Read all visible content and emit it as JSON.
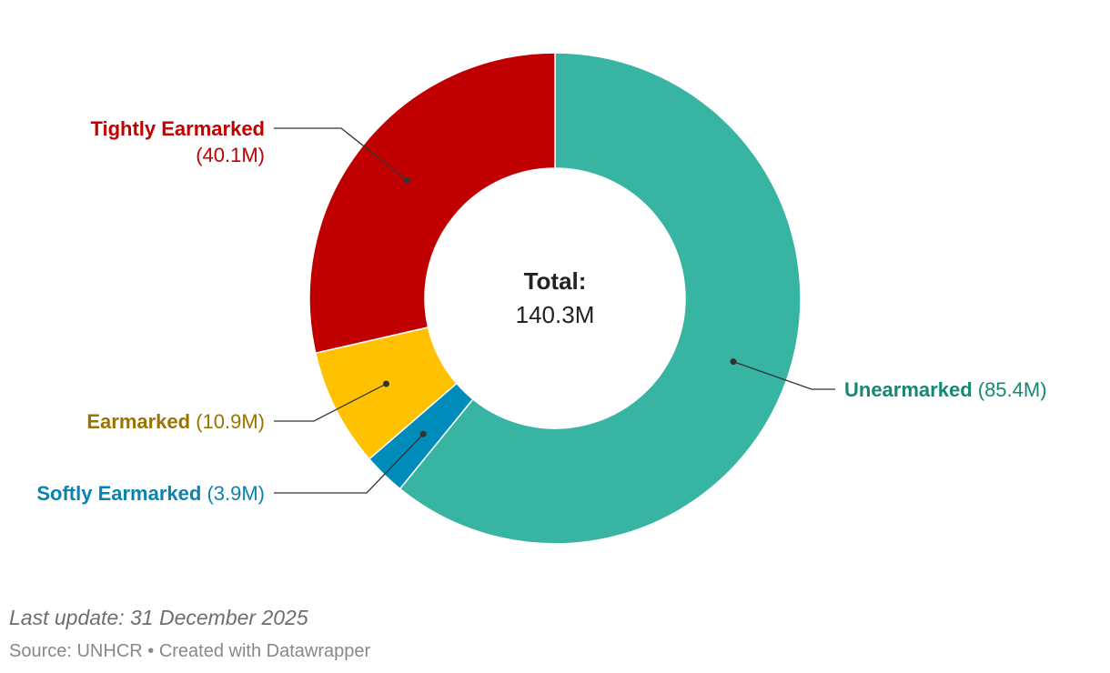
{
  "chart_data": {
    "type": "pie",
    "donut": true,
    "slices": [
      {
        "label": "Unearmarked",
        "value": 85.4,
        "value_label": "(85.4M)",
        "color": "#38b4a2",
        "label_color": "#138872"
      },
      {
        "label": "Softly Earmarked",
        "value": 3.9,
        "value_label": "(3.9M)",
        "color": "#008cba",
        "label_color": "#0a83b0"
      },
      {
        "label": "Earmarked",
        "value": 10.9,
        "value_label": "(10.9M)",
        "color": "#ffc100",
        "label_color": "#9a7400"
      },
      {
        "label": "Tightly Earmarked",
        "value": 40.1,
        "value_label": "(40.1M)",
        "color": "#c00000",
        "label_color": "#c00000"
      }
    ],
    "center_label": "Total:",
    "center_value": "140.3M"
  },
  "footer": {
    "last_update": "Last update: 31 December 2025",
    "source": "Source: UNHCR",
    "separator": " • ",
    "credit": "Created with Datawrapper"
  },
  "colors": {
    "leader_line": "#333333",
    "center_text": "#222222",
    "footer_text": "#888888"
  }
}
